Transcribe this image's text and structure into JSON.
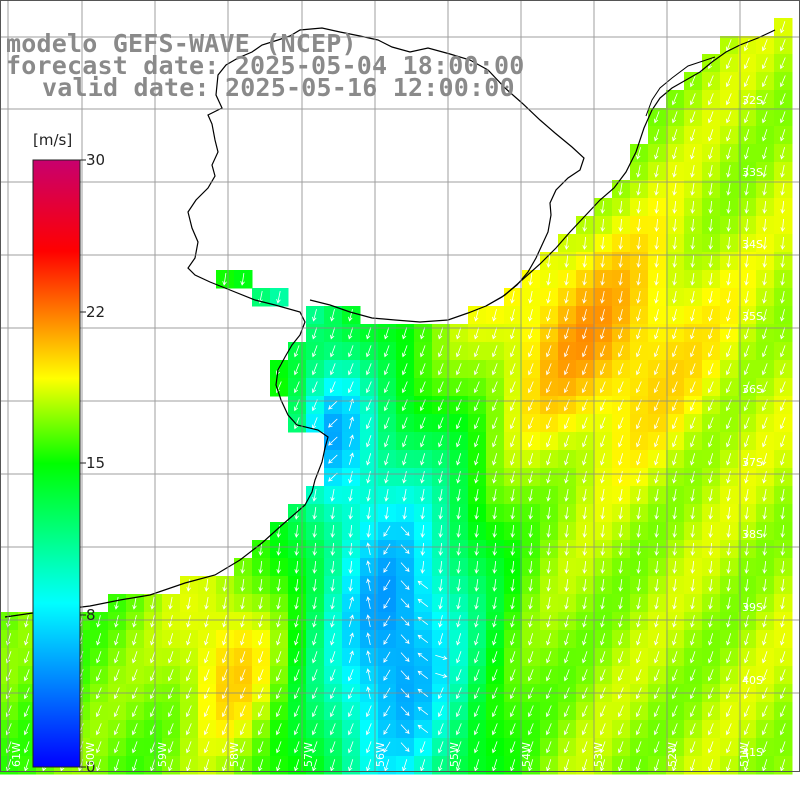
{
  "title": {
    "line1": "modelo GEFS-WAVE (NCEP)",
    "line2": "forecast date: 2025-05-04 18:00:00",
    "line3": "valid date: 2025-05-16 12:00:00"
  },
  "colorbar": {
    "unit": "[m/s]",
    "ticks": [
      "30",
      "22",
      "15",
      "8",
      "0"
    ],
    "colors": [
      "#0000ff",
      "#00e8ff",
      "#00ff00",
      "#ffff00",
      "#ff0000",
      "#c8006e"
    ]
  },
  "map": {
    "land_color": "#ffffff",
    "grid_color": "#888888",
    "coast_color": "#000000",
    "arrow_color": "#ffffff",
    "lat_labels": [
      "32S",
      "33S",
      "34S",
      "35S",
      "36S",
      "37S",
      "38S",
      "39S",
      "40S",
      "41S"
    ],
    "lon_labels": [
      "61W",
      "60W",
      "59W",
      "58W",
      "57W",
      "56W",
      "55W",
      "54W",
      "53W",
      "52W",
      "51W"
    ]
  }
}
